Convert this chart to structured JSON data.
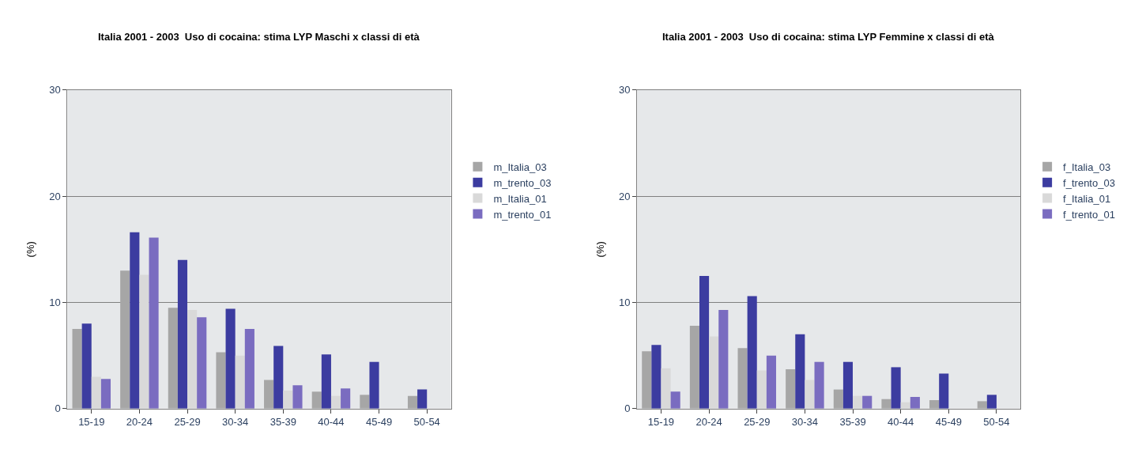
{
  "chart_data": [
    {
      "type": "bar",
      "title": "Italia 2001 - 2003  Uso di cocaina: stima LYP Maschi x classi di età",
      "ylabel": "(%)",
      "categories": [
        "15-19",
        "20-24",
        "25-29",
        "30-34",
        "35-39",
        "40-44",
        "45-49",
        "50-54"
      ],
      "series": [
        {
          "name": "m_Italia_03",
          "color": "#a6a6a6",
          "values": [
            7.5,
            13.0,
            9.5,
            5.3,
            2.7,
            1.6,
            1.3,
            1.2
          ]
        },
        {
          "name": "m_trento_03",
          "color": "#3c3ca0",
          "values": [
            8.0,
            16.6,
            14.0,
            9.4,
            5.9,
            5.1,
            4.4,
            1.8
          ]
        },
        {
          "name": "m_Italia_01",
          "color": "#d9d9d9",
          "values": [
            3.0,
            12.6,
            9.3,
            5.0,
            1.7,
            1.2,
            null,
            null
          ]
        },
        {
          "name": "m_trento_01",
          "color": "#7a6cc0",
          "values": [
            2.8,
            16.1,
            8.6,
            7.5,
            2.2,
            1.9,
            null,
            null
          ]
        }
      ],
      "ylim": [
        0,
        30
      ],
      "yticks": [
        0,
        10,
        20,
        30
      ],
      "grid": "y",
      "legend": "right"
    },
    {
      "type": "bar",
      "title": "Italia 2001 - 2003  Uso di cocaina: stima LYP Femmine x classi di età",
      "ylabel": "(%)",
      "categories": [
        "15-19",
        "20-24",
        "25-29",
        "30-34",
        "35-39",
        "40-44",
        "45-49",
        "50-54"
      ],
      "series": [
        {
          "name": "f_Italia_03",
          "color": "#a6a6a6",
          "values": [
            5.4,
            7.8,
            5.7,
            3.7,
            1.8,
            0.9,
            0.8,
            0.7
          ]
        },
        {
          "name": "f_trento_03",
          "color": "#3c3ca0",
          "values": [
            6.0,
            12.5,
            10.6,
            7.0,
            4.4,
            3.9,
            3.3,
            1.3
          ]
        },
        {
          "name": "f_Italia_01",
          "color": "#d9d9d9",
          "values": [
            3.8,
            6.8,
            3.6,
            2.7,
            1.2,
            0.6,
            null,
            null
          ]
        },
        {
          "name": "f_trento_01",
          "color": "#7a6cc0",
          "values": [
            1.6,
            9.3,
            5.0,
            4.4,
            1.2,
            1.1,
            null,
            null
          ]
        }
      ],
      "ylim": [
        0,
        30
      ],
      "yticks": [
        0,
        10,
        20,
        30
      ],
      "grid": "y",
      "legend": "right"
    }
  ]
}
